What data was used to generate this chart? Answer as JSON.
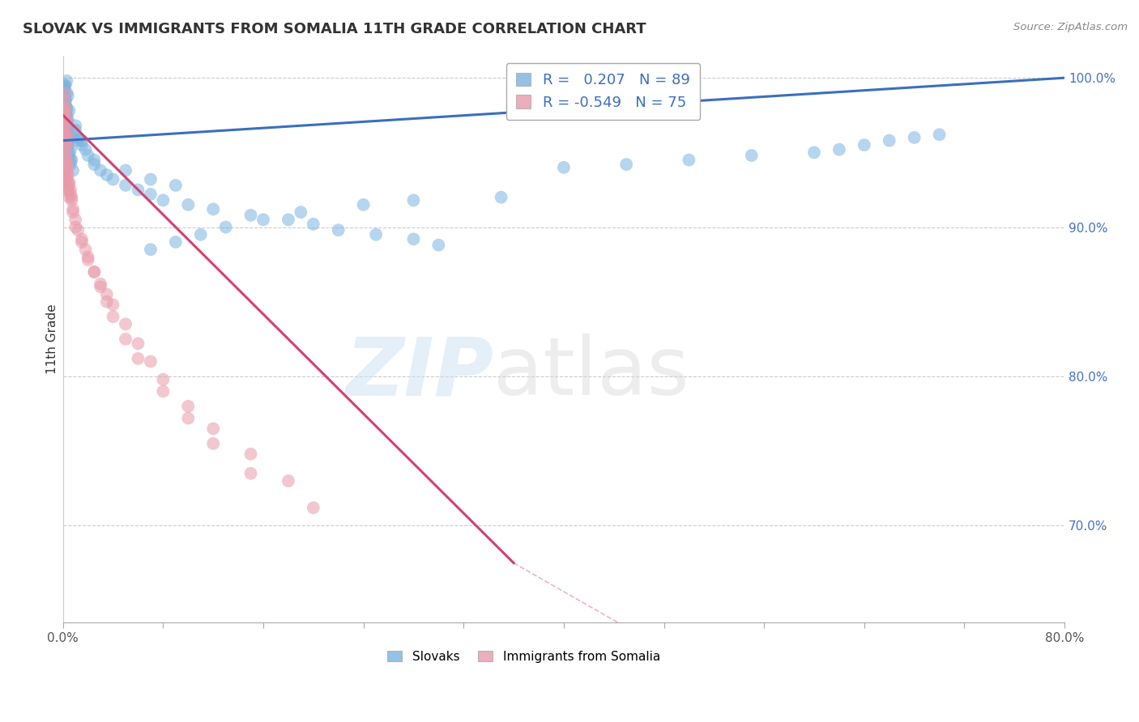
{
  "title": "SLOVAK VS IMMIGRANTS FROM SOMALIA 11TH GRADE CORRELATION CHART",
  "source_text": "Source: ZipAtlas.com",
  "ylabel": "11th Grade",
  "right_yticks": [
    "70.0%",
    "80.0%",
    "90.0%",
    "100.0%"
  ],
  "right_ytick_vals": [
    0.7,
    0.8,
    0.9,
    1.0
  ],
  "legend_entries": [
    "Slovaks",
    "Immigrants from Somalia"
  ],
  "legend_R": [
    0.207,
    -0.549
  ],
  "legend_N": [
    89,
    75
  ],
  "blue_color": "#7ab3e0",
  "pink_color": "#e89aaa",
  "blue_line_color": "#3a6fbe",
  "pink_line_color": "#d44070",
  "blue_x": [
    0.002,
    0.003,
    0.001,
    0.004,
    0.002,
    0.003,
    0.001,
    0.005,
    0.002,
    0.001,
    0.003,
    0.002,
    0.004,
    0.001,
    0.003,
    0.002,
    0.004,
    0.003,
    0.002,
    0.001,
    0.005,
    0.003,
    0.002,
    0.004,
    0.001,
    0.003,
    0.002,
    0.004,
    0.003,
    0.002,
    0.006,
    0.005,
    0.007,
    0.004,
    0.006,
    0.005,
    0.003,
    0.008,
    0.006,
    0.004,
    0.01,
    0.008,
    0.012,
    0.01,
    0.015,
    0.012,
    0.018,
    0.015,
    0.02,
    0.025,
    0.03,
    0.025,
    0.035,
    0.04,
    0.05,
    0.06,
    0.07,
    0.08,
    0.1,
    0.12,
    0.15,
    0.18,
    0.2,
    0.22,
    0.25,
    0.28,
    0.3,
    0.05,
    0.07,
    0.09,
    0.4,
    0.45,
    0.5,
    0.55,
    0.6,
    0.62,
    0.64,
    0.66,
    0.68,
    0.7,
    0.35,
    0.28,
    0.24,
    0.19,
    0.16,
    0.13,
    0.11,
    0.09,
    0.07
  ],
  "blue_y": [
    0.995,
    0.998,
    0.992,
    0.988,
    0.985,
    0.99,
    0.982,
    0.978,
    0.975,
    0.995,
    0.98,
    0.985,
    0.972,
    0.99,
    0.975,
    0.968,
    0.965,
    0.978,
    0.982,
    0.988,
    0.96,
    0.962,
    0.97,
    0.958,
    0.994,
    0.972,
    0.968,
    0.955,
    0.96,
    0.975,
    0.952,
    0.948,
    0.945,
    0.958,
    0.942,
    0.95,
    0.965,
    0.938,
    0.945,
    0.955,
    0.968,
    0.96,
    0.958,
    0.965,
    0.955,
    0.96,
    0.952,
    0.958,
    0.948,
    0.942,
    0.938,
    0.945,
    0.935,
    0.932,
    0.928,
    0.925,
    0.922,
    0.918,
    0.915,
    0.912,
    0.908,
    0.905,
    0.902,
    0.898,
    0.895,
    0.892,
    0.888,
    0.938,
    0.932,
    0.928,
    0.94,
    0.942,
    0.945,
    0.948,
    0.95,
    0.952,
    0.955,
    0.958,
    0.96,
    0.962,
    0.92,
    0.918,
    0.915,
    0.91,
    0.905,
    0.9,
    0.895,
    0.89,
    0.885
  ],
  "pink_x": [
    0.001,
    0.002,
    0.001,
    0.003,
    0.002,
    0.001,
    0.004,
    0.002,
    0.001,
    0.003,
    0.002,
    0.001,
    0.003,
    0.002,
    0.004,
    0.001,
    0.003,
    0.002,
    0.001,
    0.004,
    0.002,
    0.003,
    0.001,
    0.002,
    0.003,
    0.004,
    0.001,
    0.002,
    0.003,
    0.001,
    0.005,
    0.004,
    0.006,
    0.005,
    0.007,
    0.006,
    0.008,
    0.007,
    0.01,
    0.012,
    0.015,
    0.018,
    0.02,
    0.025,
    0.03,
    0.035,
    0.04,
    0.05,
    0.06,
    0.07,
    0.08,
    0.1,
    0.12,
    0.15,
    0.18,
    0.008,
    0.01,
    0.015,
    0.02,
    0.025,
    0.03,
    0.035,
    0.04,
    0.05,
    0.06,
    0.08,
    0.1,
    0.12,
    0.15,
    0.2,
    0.005,
    0.004,
    0.003,
    0.002,
    0.001
  ],
  "pink_y": [
    0.98,
    0.978,
    0.975,
    0.972,
    0.968,
    0.965,
    0.962,
    0.958,
    0.972,
    0.955,
    0.95,
    0.968,
    0.945,
    0.96,
    0.94,
    0.975,
    0.935,
    0.955,
    0.98,
    0.93,
    0.962,
    0.942,
    0.985,
    0.948,
    0.938,
    0.925,
    0.978,
    0.943,
    0.932,
    0.99,
    0.928,
    0.935,
    0.922,
    0.93,
    0.918,
    0.925,
    0.912,
    0.92,
    0.905,
    0.898,
    0.892,
    0.885,
    0.878,
    0.87,
    0.862,
    0.855,
    0.848,
    0.835,
    0.822,
    0.81,
    0.798,
    0.78,
    0.765,
    0.748,
    0.73,
    0.91,
    0.9,
    0.89,
    0.88,
    0.87,
    0.86,
    0.85,
    0.84,
    0.825,
    0.812,
    0.79,
    0.772,
    0.755,
    0.735,
    0.712,
    0.92,
    0.925,
    0.928,
    0.932,
    0.935
  ],
  "blue_trend": [
    0.0,
    0.8,
    0.958,
    1.0
  ],
  "pink_trend": [
    0.0,
    0.36,
    0.975,
    0.675
  ],
  "pink_dashed_trend": [
    0.36,
    0.6,
    0.675,
    0.56
  ],
  "xlim": [
    0.0,
    0.8
  ],
  "ylim": [
    0.635,
    1.015
  ],
  "xtick_positions": [
    0.0,
    0.08,
    0.16,
    0.24,
    0.32,
    0.4,
    0.48,
    0.56,
    0.64,
    0.72,
    0.8
  ],
  "watermark_zip": "ZIP",
  "watermark_atlas": "atlas",
  "bg_color": "#ffffff",
  "grid_color": "#cccccc",
  "grid_linestyle": "--"
}
